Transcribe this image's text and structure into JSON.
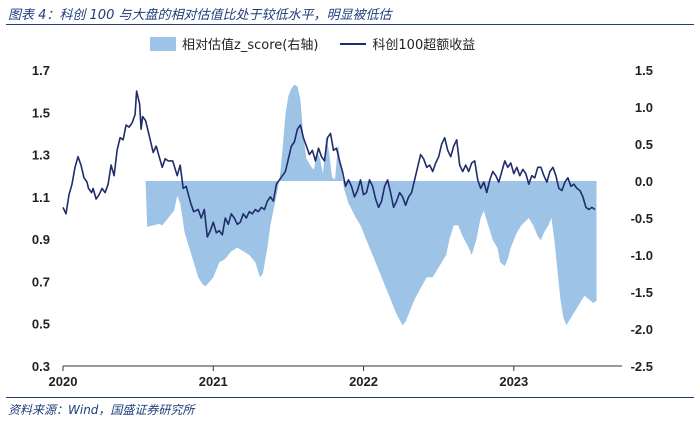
{
  "header": {
    "title": "图表 4：科创 100 与大盘的相对估值比处于较低水平，明显被低估"
  },
  "footer": {
    "source": "资料来源：Wind，国盛证券研究所"
  },
  "chart_data": {
    "type": "line+area",
    "legend_position": "top",
    "series": [
      {
        "name": "相对估值z_score(右轴)",
        "kind": "area",
        "axis": "right",
        "color": "#9dc3e6",
        "points": [
          [
            2020.55,
            0.0
          ],
          [
            2020.56,
            -0.62
          ],
          [
            2020.6,
            -0.6
          ],
          [
            2020.64,
            -0.58
          ],
          [
            2020.66,
            -0.6
          ],
          [
            2020.7,
            -0.5
          ],
          [
            2020.74,
            -0.4
          ],
          [
            2020.76,
            -0.2
          ],
          [
            2020.78,
            -0.3
          ],
          [
            2020.81,
            -0.7
          ],
          [
            2020.84,
            -0.9
          ],
          [
            2020.87,
            -1.1
          ],
          [
            2020.9,
            -1.3
          ],
          [
            2020.93,
            -1.4
          ],
          [
            2020.95,
            -1.42
          ],
          [
            2020.98,
            -1.35
          ],
          [
            2021.0,
            -1.3
          ],
          [
            2021.04,
            -1.1
          ],
          [
            2021.08,
            -1.05
          ],
          [
            2021.12,
            -0.95
          ],
          [
            2021.16,
            -0.9
          ],
          [
            2021.2,
            -0.95
          ],
          [
            2021.24,
            -1.0
          ],
          [
            2021.28,
            -1.1
          ],
          [
            2021.31,
            -1.3
          ],
          [
            2021.33,
            -1.25
          ],
          [
            2021.36,
            -0.9
          ],
          [
            2021.38,
            -0.6
          ],
          [
            2021.41,
            -0.3
          ],
          [
            2021.44,
            0.0
          ],
          [
            2021.46,
            0.4
          ],
          [
            2021.48,
            0.9
          ],
          [
            2021.5,
            1.15
          ],
          [
            2021.52,
            1.25
          ],
          [
            2021.54,
            1.3
          ],
          [
            2021.56,
            1.28
          ],
          [
            2021.58,
            1.1
          ],
          [
            2021.6,
            0.6
          ],
          [
            2021.62,
            0.3
          ],
          [
            2021.65,
            0.2
          ],
          [
            2021.67,
            0.15
          ],
          [
            2021.69,
            0.4
          ],
          [
            2021.71,
            0.3
          ],
          [
            2021.73,
            0.1
          ],
          [
            2021.75,
            0.6
          ],
          [
            2021.77,
            0.4
          ],
          [
            2021.79,
            0.05
          ],
          [
            2021.81,
            0.02
          ],
          [
            2021.83,
            0.5
          ],
          [
            2021.85,
            0.2
          ],
          [
            2021.87,
            -0.1
          ],
          [
            2021.9,
            -0.3
          ],
          [
            2021.95,
            -0.5
          ],
          [
            2021.98,
            -0.6
          ],
          [
            2022.02,
            -0.8
          ],
          [
            2022.06,
            -1.0
          ],
          [
            2022.1,
            -1.2
          ],
          [
            2022.14,
            -1.4
          ],
          [
            2022.18,
            -1.6
          ],
          [
            2022.22,
            -1.8
          ],
          [
            2022.26,
            -1.95
          ],
          [
            2022.28,
            -1.9
          ],
          [
            2022.31,
            -1.75
          ],
          [
            2022.34,
            -1.6
          ],
          [
            2022.38,
            -1.45
          ],
          [
            2022.42,
            -1.3
          ],
          [
            2022.46,
            -1.3
          ],
          [
            2022.49,
            -1.2
          ],
          [
            2022.52,
            -1.1
          ],
          [
            2022.55,
            -1.0
          ],
          [
            2022.57,
            -0.8
          ],
          [
            2022.6,
            -0.6
          ],
          [
            2022.63,
            -0.6
          ],
          [
            2022.66,
            -0.75
          ],
          [
            2022.7,
            -0.9
          ],
          [
            2022.72,
            -1.0
          ],
          [
            2022.75,
            -0.8
          ],
          [
            2022.78,
            -0.5
          ],
          [
            2022.8,
            -0.4
          ],
          [
            2022.83,
            -0.6
          ],
          [
            2022.86,
            -0.8
          ],
          [
            2022.89,
            -0.9
          ],
          [
            2022.91,
            -1.1
          ],
          [
            2022.94,
            -1.15
          ],
          [
            2022.96,
            -1.05
          ],
          [
            2022.98,
            -0.9
          ],
          [
            2023.02,
            -0.7
          ],
          [
            2023.05,
            -0.6
          ],
          [
            2023.1,
            -0.5
          ],
          [
            2023.13,
            -0.6
          ],
          [
            2023.16,
            -0.75
          ],
          [
            2023.18,
            -0.8
          ],
          [
            2023.2,
            -0.7
          ],
          [
            2023.23,
            -0.6
          ],
          [
            2023.25,
            -0.5
          ],
          [
            2023.27,
            -0.8
          ],
          [
            2023.29,
            -1.2
          ],
          [
            2023.31,
            -1.6
          ],
          [
            2023.33,
            -1.85
          ],
          [
            2023.35,
            -1.95
          ],
          [
            2023.38,
            -1.85
          ],
          [
            2023.41,
            -1.75
          ],
          [
            2023.44,
            -1.65
          ],
          [
            2023.47,
            -1.55
          ],
          [
            2023.5,
            -1.6
          ],
          [
            2023.53,
            -1.65
          ],
          [
            2023.55,
            -1.62
          ],
          [
            2023.55,
            0.0
          ]
        ]
      },
      {
        "name": "科创100超额收益",
        "kind": "line",
        "axis": "left",
        "color": "#1f2d6b",
        "points": [
          [
            2020.0,
            1.05
          ],
          [
            2020.02,
            1.02
          ],
          [
            2020.04,
            1.11
          ],
          [
            2020.06,
            1.16
          ],
          [
            2020.08,
            1.24
          ],
          [
            2020.1,
            1.29
          ],
          [
            2020.12,
            1.25
          ],
          [
            2020.14,
            1.19
          ],
          [
            2020.16,
            1.17
          ],
          [
            2020.17,
            1.14
          ],
          [
            2020.19,
            1.12
          ],
          [
            2020.2,
            1.14
          ],
          [
            2020.22,
            1.09
          ],
          [
            2020.24,
            1.11
          ],
          [
            2020.26,
            1.14
          ],
          [
            2020.28,
            1.12
          ],
          [
            2020.3,
            1.16
          ],
          [
            2020.32,
            1.25
          ],
          [
            2020.34,
            1.2
          ],
          [
            2020.36,
            1.32
          ],
          [
            2020.38,
            1.38
          ],
          [
            2020.4,
            1.37
          ],
          [
            2020.42,
            1.44
          ],
          [
            2020.44,
            1.43
          ],
          [
            2020.46,
            1.45
          ],
          [
            2020.48,
            1.49
          ],
          [
            2020.49,
            1.6
          ],
          [
            2020.51,
            1.54
          ],
          [
            2020.52,
            1.42
          ],
          [
            2020.53,
            1.48
          ],
          [
            2020.55,
            1.46
          ],
          [
            2020.57,
            1.4
          ],
          [
            2020.6,
            1.31
          ],
          [
            2020.62,
            1.34
          ],
          [
            2020.64,
            1.29
          ],
          [
            2020.66,
            1.24
          ],
          [
            2020.68,
            1.28
          ],
          [
            2020.7,
            1.27
          ],
          [
            2020.73,
            1.27
          ],
          [
            2020.76,
            1.2
          ],
          [
            2020.78,
            1.25
          ],
          [
            2020.8,
            1.14
          ],
          [
            2020.82,
            1.15
          ],
          [
            2020.85,
            1.07
          ],
          [
            2020.87,
            1.03
          ],
          [
            2020.9,
            1.04
          ],
          [
            2020.92,
            1.0
          ],
          [
            2020.94,
            1.04
          ],
          [
            2020.96,
            0.91
          ],
          [
            2020.98,
            0.94
          ],
          [
            2021.0,
            0.98
          ],
          [
            2021.02,
            0.93
          ],
          [
            2021.04,
            0.94
          ],
          [
            2021.06,
            0.92
          ],
          [
            2021.08,
            1.0
          ],
          [
            2021.1,
            0.97
          ],
          [
            2021.12,
            1.02
          ],
          [
            2021.14,
            1.0
          ],
          [
            2021.16,
            0.97
          ],
          [
            2021.18,
            0.98
          ],
          [
            2021.2,
            1.02
          ],
          [
            2021.22,
            1.0
          ],
          [
            2021.24,
            1.03
          ],
          [
            2021.26,
            1.02
          ],
          [
            2021.28,
            1.04
          ],
          [
            2021.3,
            1.03
          ],
          [
            2021.32,
            1.05
          ],
          [
            2021.34,
            1.04
          ],
          [
            2021.36,
            1.08
          ],
          [
            2021.38,
            1.1
          ],
          [
            2021.4,
            1.08
          ],
          [
            2021.42,
            1.16
          ],
          [
            2021.44,
            1.18
          ],
          [
            2021.46,
            1.2
          ],
          [
            2021.48,
            1.22
          ],
          [
            2021.5,
            1.28
          ],
          [
            2021.52,
            1.34
          ],
          [
            2021.54,
            1.36
          ],
          [
            2021.56,
            1.42
          ],
          [
            2021.58,
            1.44
          ],
          [
            2021.6,
            1.38
          ],
          [
            2021.62,
            1.34
          ],
          [
            2021.64,
            1.3
          ],
          [
            2021.66,
            1.32
          ],
          [
            2021.68,
            1.27
          ],
          [
            2021.7,
            1.33
          ],
          [
            2021.72,
            1.29
          ],
          [
            2021.74,
            1.27
          ],
          [
            2021.76,
            1.38
          ],
          [
            2021.78,
            1.4
          ],
          [
            2021.8,
            1.32
          ],
          [
            2021.82,
            1.33
          ],
          [
            2021.84,
            1.27
          ],
          [
            2021.86,
            1.22
          ],
          [
            2021.88,
            1.15
          ],
          [
            2021.9,
            1.18
          ],
          [
            2021.92,
            1.15
          ],
          [
            2021.94,
            1.1
          ],
          [
            2021.96,
            1.13
          ],
          [
            2021.98,
            1.18
          ],
          [
            2022.0,
            1.11
          ],
          [
            2022.02,
            1.12
          ],
          [
            2022.04,
            1.18
          ],
          [
            2022.06,
            1.15
          ],
          [
            2022.08,
            1.09
          ],
          [
            2022.1,
            1.05
          ],
          [
            2022.12,
            1.08
          ],
          [
            2022.14,
            1.15
          ],
          [
            2022.16,
            1.18
          ],
          [
            2022.18,
            1.12
          ],
          [
            2022.2,
            1.05
          ],
          [
            2022.22,
            1.08
          ],
          [
            2022.24,
            1.12
          ],
          [
            2022.26,
            1.1
          ],
          [
            2022.28,
            1.06
          ],
          [
            2022.3,
            1.1
          ],
          [
            2022.32,
            1.12
          ],
          [
            2022.34,
            1.18
          ],
          [
            2022.36,
            1.24
          ],
          [
            2022.38,
            1.3
          ],
          [
            2022.4,
            1.28
          ],
          [
            2022.42,
            1.24
          ],
          [
            2022.44,
            1.25
          ],
          [
            2022.46,
            1.22
          ],
          [
            2022.48,
            1.26
          ],
          [
            2022.5,
            1.29
          ],
          [
            2022.52,
            1.35
          ],
          [
            2022.54,
            1.38
          ],
          [
            2022.56,
            1.32
          ],
          [
            2022.58,
            1.29
          ],
          [
            2022.6,
            1.34
          ],
          [
            2022.62,
            1.37
          ],
          [
            2022.64,
            1.25
          ],
          [
            2022.66,
            1.22
          ],
          [
            2022.68,
            1.25
          ],
          [
            2022.7,
            1.22
          ],
          [
            2022.72,
            1.26
          ],
          [
            2022.74,
            1.27
          ],
          [
            2022.76,
            1.18
          ],
          [
            2022.78,
            1.14
          ],
          [
            2022.8,
            1.17
          ],
          [
            2022.82,
            1.12
          ],
          [
            2022.84,
            1.18
          ],
          [
            2022.86,
            1.22
          ],
          [
            2022.88,
            1.2
          ],
          [
            2022.9,
            1.17
          ],
          [
            2022.92,
            1.22
          ],
          [
            2022.94,
            1.27
          ],
          [
            2022.96,
            1.24
          ],
          [
            2022.98,
            1.26
          ],
          [
            2023.0,
            1.21
          ],
          [
            2023.02,
            1.24
          ],
          [
            2023.04,
            1.2
          ],
          [
            2023.06,
            1.23
          ],
          [
            2023.08,
            1.21
          ],
          [
            2023.1,
            1.16
          ],
          [
            2023.12,
            1.2
          ],
          [
            2023.14,
            1.19
          ],
          [
            2023.16,
            1.24
          ],
          [
            2023.18,
            1.24
          ],
          [
            2023.2,
            1.2
          ],
          [
            2023.22,
            1.17
          ],
          [
            2023.24,
            1.22
          ],
          [
            2023.26,
            1.24
          ],
          [
            2023.28,
            1.2
          ],
          [
            2023.3,
            1.14
          ],
          [
            2023.32,
            1.13
          ],
          [
            2023.34,
            1.17
          ],
          [
            2023.36,
            1.19
          ],
          [
            2023.38,
            1.15
          ],
          [
            2023.4,
            1.16
          ],
          [
            2023.42,
            1.14
          ],
          [
            2023.44,
            1.13
          ],
          [
            2023.46,
            1.1
          ],
          [
            2023.48,
            1.05
          ],
          [
            2023.5,
            1.04
          ],
          [
            2023.52,
            1.05
          ],
          [
            2023.54,
            1.04
          ]
        ]
      }
    ],
    "axes": {
      "x": {
        "min": 2020.0,
        "max": 2023.72,
        "tick_values": [
          2020,
          2021,
          2022,
          2023
        ],
        "tick_labels": [
          "2020",
          "2021",
          "2022",
          "2023"
        ]
      },
      "y_left": {
        "min": 0.3,
        "max": 1.7,
        "ticks": [
          "1.7",
          "1.5",
          "1.3",
          "1.1",
          "0.9",
          "0.7",
          "0.5",
          "0.3"
        ]
      },
      "y_right": {
        "min": -2.5,
        "max": 1.5,
        "ticks": [
          "1.5",
          "1.0",
          "0.5",
          "0.0",
          "-0.5",
          "-1.0",
          "-1.5",
          "-2.0",
          "-2.5"
        ]
      }
    },
    "grid": false
  }
}
